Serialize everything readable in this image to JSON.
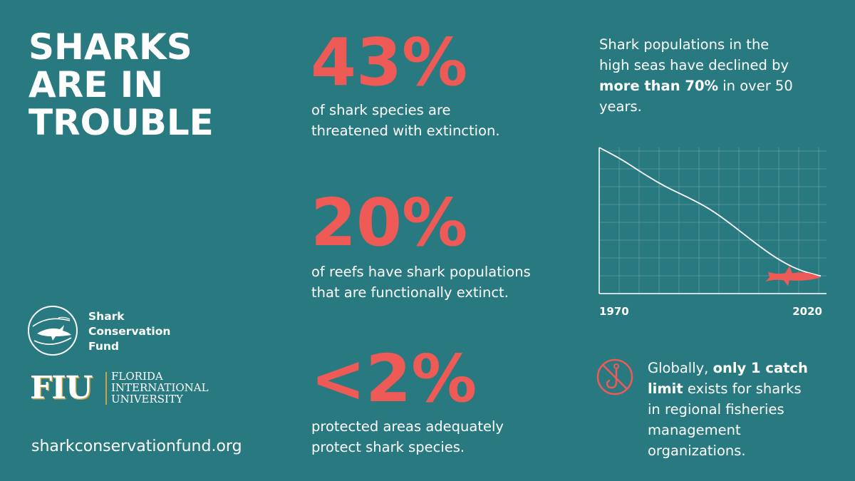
{
  "headline": {
    "line1": "SHARKS",
    "line2": "ARE IN",
    "line3": "TROUBLE"
  },
  "org": {
    "name_line1": "Shark",
    "name_line2": "Conservation",
    "name_line3": "Fund",
    "logo_icon": "shark-circle-logo-icon"
  },
  "university": {
    "mark": "FIU",
    "name_line1": "FLORIDA",
    "name_line2": "INTERNATIONAL",
    "name_line3": "UNIVERSITY"
  },
  "website": "sharkconservationfund.org",
  "stats": [
    {
      "value": "43%",
      "line1": "of shark species are",
      "line2": "threatened with extinction."
    },
    {
      "value": "20%",
      "line1": "of reefs have shark populations",
      "line2": "that are functionally extinct."
    },
    {
      "value": "<2%",
      "line1": "protected areas adequately",
      "line2": "protect shark species."
    }
  ],
  "decline": {
    "line1": "Shark populations in the",
    "line2": "high seas have declined by",
    "line3_bold": "more than 70%",
    "line3_rest": " in over 50",
    "line4": "years."
  },
  "chart_data": {
    "type": "line",
    "x": [
      1970,
      1975,
      1980,
      1985,
      1990,
      1995,
      2000,
      2005,
      2010,
      2015,
      2020
    ],
    "values": [
      100,
      92,
      82,
      73,
      66,
      58,
      47,
      35,
      24,
      16,
      12
    ],
    "xtick_labels": [
      "1970",
      "2020"
    ],
    "xlim": [
      1970,
      2020
    ],
    "ylim": [
      0,
      100
    ],
    "grid": true,
    "line_color": "#ffffff",
    "marker_icon": "shark-icon",
    "marker_color": "#ee5a55"
  },
  "catch_limit": {
    "icon": "no-fishing-hook-icon",
    "line1_rest": "Globally, ",
    "line1_bold": "only 1 catch",
    "line2_bold": "limit",
    "line2_rest": " exists for sharks",
    "line3": "in regional fisheries",
    "line4": "management",
    "line5": "organizations."
  },
  "colors": {
    "background": "#297a80",
    "accent": "#ee5a55",
    "text": "#ffffff",
    "gold": "#c9a34a"
  }
}
